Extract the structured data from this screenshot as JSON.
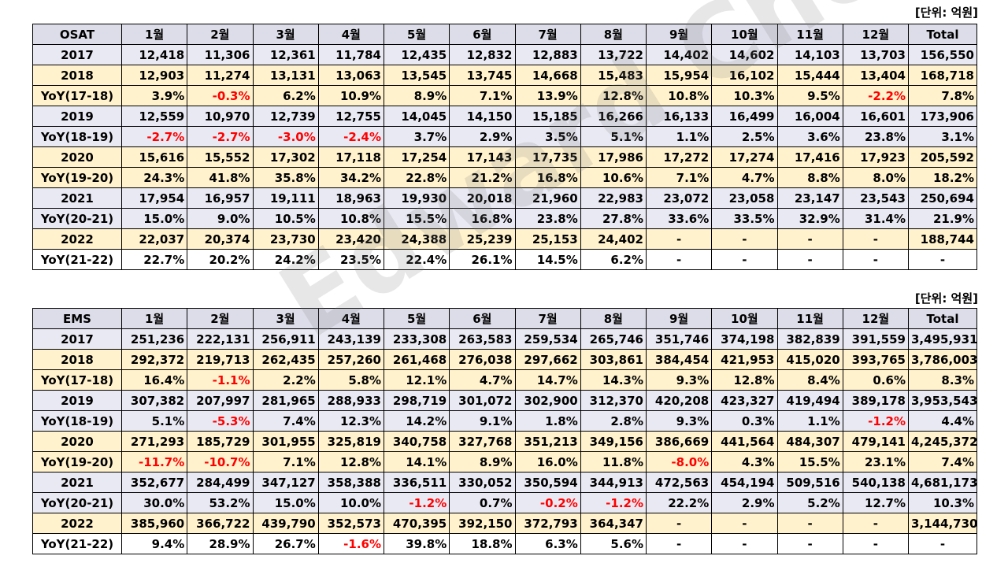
{
  "unit_label": "[단위: 억원]",
  "watermark": "Edward Choi",
  "tables": [
    {
      "name": "OSAT",
      "header": [
        "OSAT",
        "1월",
        "2월",
        "3월",
        "4월",
        "5월",
        "6월",
        "7월",
        "8월",
        "9월",
        "10월",
        "11월",
        "12월",
        "Total"
      ],
      "rows": [
        [
          "2017",
          "12,418",
          "11,306",
          "12,361",
          "11,784",
          "12,435",
          "12,832",
          "12,883",
          "13,722",
          "14,402",
          "14,602",
          "14,103",
          "13,703",
          "156,550"
        ],
        [
          "2018",
          "12,903",
          "11,274",
          "13,131",
          "13,063",
          "13,545",
          "13,745",
          "14,668",
          "15,483",
          "15,954",
          "16,102",
          "15,444",
          "13,404",
          "168,718"
        ],
        [
          "YoY(17-18)",
          "3.9%",
          "-0.3%",
          "6.2%",
          "10.9%",
          "8.9%",
          "7.1%",
          "13.9%",
          "12.8%",
          "10.8%",
          "10.3%",
          "9.5%",
          "-2.2%",
          "7.8%"
        ],
        [
          "2019",
          "12,559",
          "10,970",
          "12,739",
          "12,755",
          "14,045",
          "14,150",
          "15,185",
          "16,266",
          "16,133",
          "16,499",
          "16,004",
          "16,601",
          "173,906"
        ],
        [
          "YoY(18-19)",
          "-2.7%",
          "-2.7%",
          "-3.0%",
          "-2.4%",
          "3.7%",
          "2.9%",
          "3.5%",
          "5.1%",
          "1.1%",
          "2.5%",
          "3.6%",
          "23.8%",
          "3.1%"
        ],
        [
          "2020",
          "15,616",
          "15,552",
          "17,302",
          "17,118",
          "17,254",
          "17,143",
          "17,735",
          "17,986",
          "17,272",
          "17,274",
          "17,416",
          "17,923",
          "205,592"
        ],
        [
          "YoY(19-20)",
          "24.3%",
          "41.8%",
          "35.8%",
          "34.2%",
          "22.8%",
          "21.2%",
          "16.8%",
          "10.6%",
          "7.1%",
          "4.7%",
          "8.8%",
          "8.0%",
          "18.2%"
        ],
        [
          "2021",
          "17,954",
          "16,957",
          "19,111",
          "18,963",
          "19,930",
          "20,018",
          "21,960",
          "22,983",
          "23,072",
          "23,058",
          "23,147",
          "23,543",
          "250,694"
        ],
        [
          "YoY(20-21)",
          "15.0%",
          "9.0%",
          "10.5%",
          "10.8%",
          "15.5%",
          "16.8%",
          "23.8%",
          "27.8%",
          "33.6%",
          "33.5%",
          "32.9%",
          "31.4%",
          "21.9%"
        ],
        [
          "2022",
          "22,037",
          "20,374",
          "23,730",
          "23,420",
          "24,388",
          "25,239",
          "25,153",
          "24,402",
          "-",
          "-",
          "-",
          "-",
          "188,744"
        ],
        [
          "YoY(21-22)",
          "22.7%",
          "20.2%",
          "24.2%",
          "23.5%",
          "22.4%",
          "26.1%",
          "14.5%",
          "6.2%",
          "-",
          "-",
          "-",
          "-",
          "-"
        ]
      ]
    },
    {
      "name": "EMS",
      "header": [
        "EMS",
        "1월",
        "2월",
        "3월",
        "4월",
        "5월",
        "6월",
        "7월",
        "8월",
        "9월",
        "10월",
        "11월",
        "12월",
        "Total"
      ],
      "rows": [
        [
          "2017",
          "251,236",
          "222,131",
          "256,911",
          "243,139",
          "233,308",
          "263,583",
          "259,534",
          "265,746",
          "351,746",
          "374,198",
          "382,839",
          "391,559",
          "3,495,931"
        ],
        [
          "2018",
          "292,372",
          "219,713",
          "262,435",
          "257,260",
          "261,468",
          "276,038",
          "297,662",
          "303,861",
          "384,454",
          "421,953",
          "415,020",
          "393,765",
          "3,786,003"
        ],
        [
          "YoY(17-18)",
          "16.4%",
          "-1.1%",
          "2.2%",
          "5.8%",
          "12.1%",
          "4.7%",
          "14.7%",
          "14.3%",
          "9.3%",
          "12.8%",
          "8.4%",
          "0.6%",
          "8.3%"
        ],
        [
          "2019",
          "307,382",
          "207,997",
          "281,965",
          "288,933",
          "298,719",
          "301,072",
          "302,900",
          "312,370",
          "420,208",
          "423,327",
          "419,494",
          "389,178",
          "3,953,543"
        ],
        [
          "YoY(18-19)",
          "5.1%",
          "-5.3%",
          "7.4%",
          "12.3%",
          "14.2%",
          "9.1%",
          "1.8%",
          "2.8%",
          "9.3%",
          "0.3%",
          "1.1%",
          "-1.2%",
          "4.4%"
        ],
        [
          "2020",
          "271,293",
          "185,729",
          "301,955",
          "325,819",
          "340,758",
          "327,768",
          "351,213",
          "349,156",
          "386,669",
          "441,564",
          "484,307",
          "479,141",
          "4,245,372"
        ],
        [
          "YoY(19-20)",
          "-11.7%",
          "-10.7%",
          "7.1%",
          "12.8%",
          "14.1%",
          "8.9%",
          "16.0%",
          "11.8%",
          "-8.0%",
          "4.3%",
          "15.5%",
          "23.1%",
          "7.4%"
        ],
        [
          "2021",
          "352,677",
          "284,499",
          "347,127",
          "358,388",
          "336,511",
          "330,052",
          "350,594",
          "344,913",
          "472,563",
          "454,194",
          "509,516",
          "540,138",
          "4,681,173"
        ],
        [
          "YoY(20-21)",
          "30.0%",
          "53.2%",
          "15.0%",
          "10.0%",
          "-1.2%",
          "0.7%",
          "-0.2%",
          "-1.2%",
          "22.2%",
          "2.9%",
          "5.2%",
          "12.7%",
          "10.3%"
        ],
        [
          "2022",
          "385,960",
          "366,722",
          "439,790",
          "352,573",
          "470,395",
          "392,150",
          "372,793",
          "364,347",
          "-",
          "-",
          "-",
          "-",
          "3,144,730"
        ],
        [
          "YoY(21-22)",
          "9.4%",
          "28.9%",
          "26.7%",
          "-1.6%",
          "39.8%",
          "18.8%",
          "6.3%",
          "5.6%",
          "-",
          "-",
          "-",
          "-",
          "-"
        ]
      ]
    }
  ],
  "colors": {
    "negative": "#ff0000",
    "header_bg": "#dcdde8",
    "year_bg": "#e9e9f3",
    "alt_bg": "#fff2cc"
  }
}
